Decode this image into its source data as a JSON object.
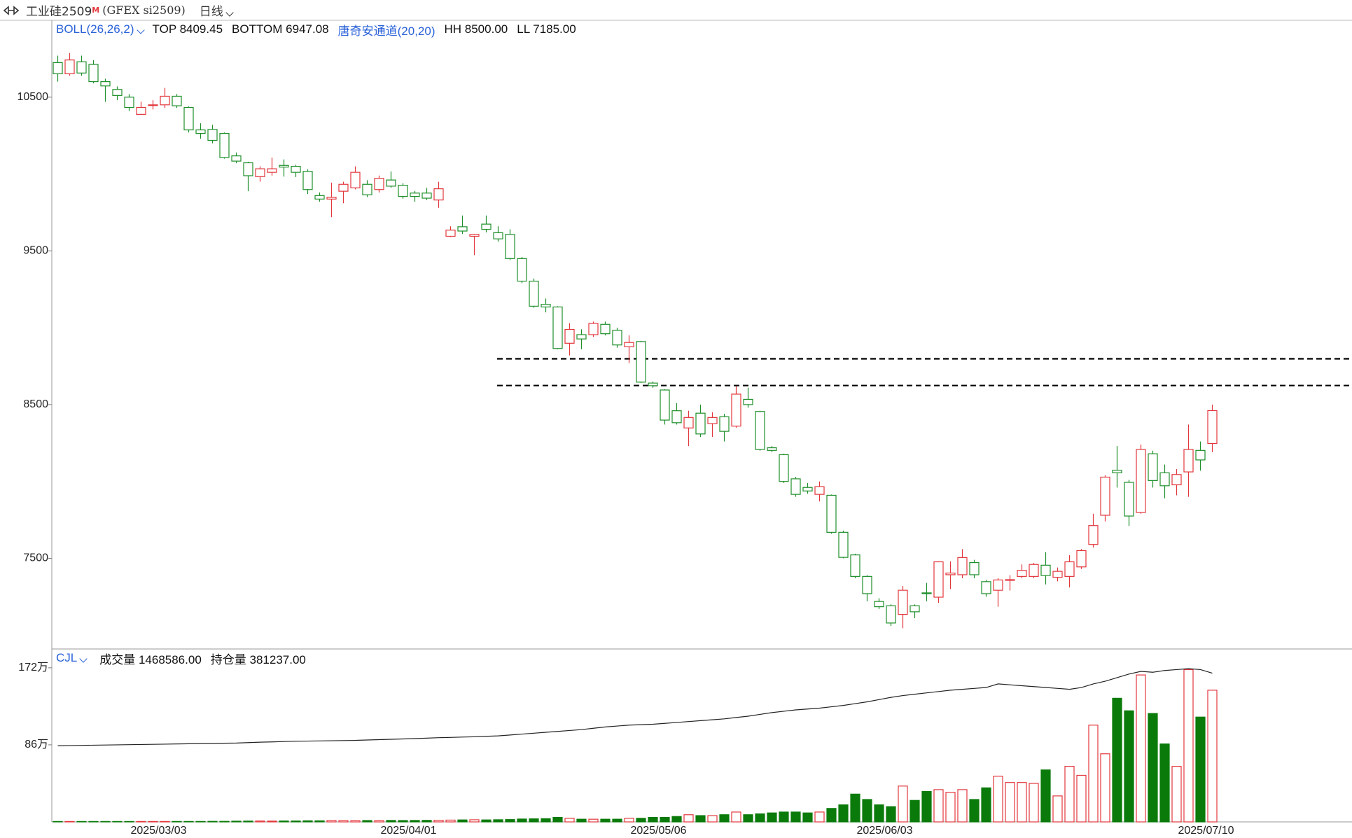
{
  "header": {
    "symbol": "工业硅2509",
    "flag": "M",
    "code": "(GFEX si2509)",
    "period": "日线"
  },
  "chart_data": [
    {
      "type": "candlestick",
      "indicators": [
        "BOLL(26,26,2)",
        "TOP 8409.45",
        "BOTTOM 6947.08",
        "唐奇安通道(20,20)",
        "HH 8500.00",
        "LL 7185.00"
      ],
      "categories": [
        null,
        null,
        null,
        null,
        null,
        null,
        null,
        null,
        "2025/03/03",
        null,
        null,
        null,
        null,
        null,
        null,
        null,
        null,
        null,
        null,
        null,
        null,
        null,
        null,
        null,
        null,
        null,
        null,
        null,
        null,
        "2025/04/01",
        null,
        null,
        null,
        null,
        null,
        null,
        null,
        null,
        null,
        null,
        null,
        null,
        null,
        null,
        null,
        null,
        null,
        null,
        null,
        null,
        "2025/05/06",
        null,
        null,
        null,
        null,
        null,
        null,
        null,
        null,
        null,
        null,
        null,
        null,
        null,
        null,
        null,
        null,
        null,
        null,
        "2025/06/03",
        null,
        null,
        null,
        null,
        null,
        null,
        null,
        null,
        null,
        null,
        null,
        null,
        null,
        null,
        null,
        null,
        null,
        null,
        null,
        null,
        null,
        null,
        null,
        null,
        null,
        null,
        "2025/07/10",
        null
      ],
      "open": [
        10725,
        10652,
        10730,
        10713,
        10601,
        10550,
        10500,
        10388,
        10450,
        10450,
        10506,
        10433,
        10287,
        10290,
        10264,
        10118,
        10073,
        9983,
        10011,
        10056,
        10050,
        10017,
        9860,
        9837,
        9888,
        9910,
        9933,
        9899,
        9961,
        9927,
        9876,
        9876,
        9831,
        9595,
        9657,
        9595,
        9674,
        9618,
        9607,
        9450,
        9303,
        9152,
        9135,
        8899,
        8955,
        8955,
        9022,
        8983,
        8876,
        8910,
        8640,
        8595,
        8460,
        8348,
        8444,
        8376,
        8421,
        8360,
        8534,
        8455,
        8219,
        8174,
        8017,
        7961,
        7916,
        7910,
        7669,
        7522,
        7382,
        7219,
        7191,
        7135,
        7191,
        7275,
        7247,
        7393,
        7393,
        7472,
        7348,
        7292,
        7359,
        7382,
        7382,
        7455,
        7376,
        7382,
        7444,
        7590,
        7780,
        8073,
        7994,
        7798,
        8180,
        8056,
        7978,
        8062,
        8202,
        8247
      ],
      "high": [
        10770,
        10787,
        10770,
        10740,
        10620,
        10570,
        10520,
        10470,
        10480,
        10560,
        10520,
        10440,
        10330,
        10320,
        10270,
        10140,
        10080,
        10050,
        10107,
        10095,
        10060,
        10030,
        9880,
        9944,
        9950,
        10050,
        9960,
        9990,
        10017,
        9940,
        9890,
        9910,
        9950,
        9660,
        9730,
        9610,
        9730,
        9660,
        9640,
        9460,
        9320,
        9190,
        9140,
        9030,
        8990,
        9040,
        9040,
        9000,
        8950,
        8915,
        8650,
        8600,
        8510,
        8460,
        8500,
        8450,
        8440,
        8620,
        8610,
        8460,
        8230,
        8180,
        8030,
        7990,
        8000,
        7915,
        7680,
        7530,
        7390,
        7240,
        7200,
        7320,
        7200,
        7340,
        7480,
        7480,
        7560,
        7490,
        7360,
        7370,
        7390,
        7460,
        7470,
        7540,
        7440,
        7520,
        7560,
        7790,
        8040,
        8230,
        8010,
        8240,
        8200,
        8110,
        8080,
        8370,
        8260,
        8500
      ],
      "low": [
        10601,
        10640,
        10640,
        10590,
        10470,
        10480,
        10410,
        10388,
        10420,
        10430,
        10430,
        10270,
        10230,
        10200,
        10100,
        10070,
        9888,
        9950,
        9990,
        9983,
        9980,
        9870,
        9820,
        9719,
        9810,
        9900,
        9850,
        9880,
        9910,
        9840,
        9820,
        9830,
        9780,
        9590,
        9610,
        9472,
        9620,
        9560,
        9440,
        9290,
        9130,
        9100,
        8860,
        8820,
        8860,
        8940,
        8950,
        8870,
        8770,
        8640,
        8610,
        8370,
        8370,
        8230,
        8290,
        8290,
        8260,
        8350,
        8480,
        8200,
        8190,
        7990,
        7900,
        7920,
        7870,
        7660,
        7500,
        7370,
        7220,
        7170,
        7060,
        7045,
        7110,
        7220,
        7210,
        7300,
        7370,
        7370,
        7250,
        7185,
        7290,
        7370,
        7370,
        7330,
        7350,
        7310,
        7430,
        7570,
        7740,
        7960,
        7710,
        7790,
        7960,
        7890,
        7910,
        7900,
        8070,
        8190
      ],
      "close": [
        10652,
        10742,
        10657,
        10601,
        10573,
        10511,
        10433,
        10433,
        10450,
        10506,
        10444,
        10287,
        10264,
        10219,
        10107,
        10084,
        9989,
        10034,
        10034,
        10045,
        10011,
        9899,
        9837,
        9848,
        9933,
        10011,
        9865,
        9972,
        9921,
        9854,
        9854,
        9843,
        9904,
        9635,
        9629,
        9607,
        9640,
        9578,
        9450,
        9303,
        9140,
        9135,
        8865,
        8989,
        8927,
        9028,
        8961,
        8888,
        8904,
        8646,
        8623,
        8399,
        8382,
        8416,
        8309,
        8416,
        8326,
        8568,
        8500,
        8208,
        8202,
        8000,
        7916,
        7938,
        7966,
        7669,
        7506,
        7382,
        7270,
        7185,
        7079,
        7292,
        7152,
        7270,
        7477,
        7404,
        7505,
        7393,
        7270,
        7359,
        7361,
        7421,
        7460,
        7388,
        7415,
        7477,
        7550,
        7713,
        8028,
        8056,
        7775,
        8208,
        8006,
        7972,
        8045,
        8208,
        8140,
        8461
      ],
      "up_color": "#e2373c",
      "down_color": "#1e8f2a",
      "ylim": [
        6910,
        11000
      ],
      "yticks": [
        7500,
        8500,
        9500,
        10500
      ],
      "reference_lines": [
        8798,
        8624
      ]
    },
    {
      "type": "volume",
      "indicators": [
        "CJL",
        "成交量 1468586.00",
        "持仓量 381237.00"
      ],
      "values": [
        0.3,
        0.3,
        0.3,
        0.3,
        0.3,
        0.3,
        0.4,
        0.4,
        0.4,
        0.4,
        0.5,
        0.5,
        0.5,
        0.6,
        0.6,
        0.8,
        0.9,
        1,
        0.9,
        1,
        1,
        1.2,
        1.2,
        1.5,
        1.4,
        1.3,
        1.5,
        1.4,
        1.6,
        1.5,
        1.6,
        1.7,
        1.8,
        2,
        2.2,
        2.4,
        2.2,
        2.4,
        2.6,
        3.2,
        3.4,
        3.6,
        5,
        4,
        3,
        3,
        3,
        3,
        4,
        4,
        5,
        5,
        6,
        8,
        7,
        7,
        8,
        11,
        8,
        9,
        10,
        11,
        11,
        10,
        11,
        15,
        19,
        31,
        25,
        19,
        17,
        40,
        24,
        34,
        36,
        33,
        36,
        25,
        38,
        51,
        44,
        44,
        43,
        58,
        29,
        62,
        52,
        108,
        76,
        138,
        124,
        164,
        121,
        87,
        62,
        170,
        117,
        147
      ],
      "line_values": [
        85,
        85.2,
        85.4,
        85.6,
        85.8,
        86,
        86.2,
        86.4,
        86.6,
        86.8,
        87,
        87.2,
        87.4,
        87.6,
        87.8,
        88,
        88.5,
        89,
        89.3,
        89.7,
        90,
        90.2,
        90.4,
        90.6,
        90.8,
        91,
        91.4,
        91.8,
        92.2,
        92.6,
        93,
        93.5,
        94,
        94.3,
        94.7,
        95,
        95.5,
        96,
        97,
        98,
        99,
        100,
        101,
        102,
        103,
        104.5,
        106,
        107,
        108,
        108.5,
        109,
        110,
        111,
        112,
        113,
        114,
        115,
        116.5,
        118,
        120,
        122,
        123.5,
        125,
        126,
        127,
        128.5,
        130,
        132,
        134,
        136.5,
        139,
        141,
        142.5,
        144,
        145.5,
        147,
        148,
        149,
        150,
        154,
        153,
        152,
        151,
        150,
        149,
        148,
        150,
        154,
        157,
        161,
        165,
        168,
        167,
        169,
        170,
        171,
        170,
        166
      ],
      "up_color": "#e2373c",
      "down_color": "#0a7a0a",
      "line_color": "#222222",
      "ylim": [
        0,
        193
      ],
      "yticks": [
        {
          "value": 86,
          "label": "86万"
        },
        {
          "value": 172,
          "label": "172万"
        }
      ]
    }
  ]
}
